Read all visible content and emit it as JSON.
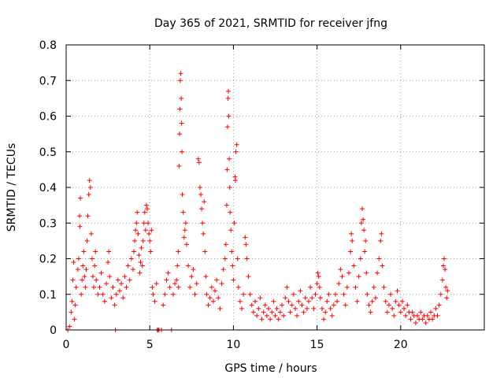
{
  "chart_data": {
    "type": "scatter",
    "title": "Day 365 of 2021, SRMTID for receiver jfng",
    "xlabel": "GPS time / hours",
    "ylabel": "SRMTID / TECUs",
    "xlim": [
      0,
      25
    ],
    "ylim": [
      0,
      0.8
    ],
    "x_ticks": [
      0,
      5,
      10,
      15,
      20
    ],
    "x_tick_labels": [
      "0",
      "5",
      "10",
      "15",
      "20"
    ],
    "y_ticks": [
      0,
      0.1,
      0.2,
      0.3,
      0.4,
      0.5,
      0.6,
      0.7,
      0.8
    ],
    "y_tick_labels": [
      "0",
      "0.1",
      "0.2",
      "0.3",
      "0.4",
      "0.5",
      "0.6",
      "0.7",
      "0.8"
    ],
    "grid": true,
    "marker": "plus",
    "series": [
      {
        "name": "SRMTID",
        "color": "#ff0000",
        "points": [
          [
            0.1,
            0.0
          ],
          [
            0.2,
            0.01
          ],
          [
            0.3,
            0.05
          ],
          [
            0.35,
            0.08
          ],
          [
            0.4,
            0.14
          ],
          [
            0.45,
            0.19
          ],
          [
            0.5,
            0.03
          ],
          [
            0.55,
            0.07
          ],
          [
            0.6,
            0.12
          ],
          [
            0.7,
            0.17
          ],
          [
            0.75,
            0.2
          ],
          [
            0.8,
            0.32
          ],
          [
            0.82,
            0.29
          ],
          [
            0.85,
            0.37
          ],
          [
            0.9,
            0.1
          ],
          [
            0.95,
            0.14
          ],
          [
            1.0,
            0.18
          ],
          [
            1.05,
            0.22
          ],
          [
            1.1,
            0.15
          ],
          [
            1.15,
            0.12
          ],
          [
            1.2,
            0.17
          ],
          [
            1.25,
            0.25
          ],
          [
            1.3,
            0.32
          ],
          [
            1.35,
            0.38
          ],
          [
            1.4,
            0.42
          ],
          [
            1.45,
            0.4
          ],
          [
            1.5,
            0.27
          ],
          [
            1.55,
            0.2
          ],
          [
            1.6,
            0.15
          ],
          [
            1.65,
            0.12
          ],
          [
            1.7,
            0.18
          ],
          [
            1.75,
            0.22
          ],
          [
            1.8,
            0.14
          ],
          [
            1.9,
            0.1
          ],
          [
            2.0,
            0.12
          ],
          [
            2.1,
            0.16
          ],
          [
            2.2,
            0.1
          ],
          [
            2.3,
            0.08
          ],
          [
            2.4,
            0.13
          ],
          [
            2.5,
            0.19
          ],
          [
            2.55,
            0.22
          ],
          [
            2.6,
            0.15
          ],
          [
            2.7,
            0.09
          ],
          [
            2.8,
            0.12
          ],
          [
            2.9,
            0.07
          ],
          [
            2.95,
            0.0
          ],
          [
            3.0,
            0.1
          ],
          [
            3.1,
            0.14
          ],
          [
            3.2,
            0.11
          ],
          [
            3.3,
            0.13
          ],
          [
            3.4,
            0.09
          ],
          [
            3.5,
            0.15
          ],
          [
            3.6,
            0.12
          ],
          [
            3.7,
            0.18
          ],
          [
            3.8,
            0.14
          ],
          [
            3.9,
            0.2
          ],
          [
            4.0,
            0.17
          ],
          [
            4.05,
            0.22
          ],
          [
            4.1,
            0.25
          ],
          [
            4.15,
            0.28
          ],
          [
            4.2,
            0.3
          ],
          [
            4.25,
            0.33
          ],
          [
            4.3,
            0.27
          ],
          [
            4.35,
            0.21
          ],
          [
            4.4,
            0.16
          ],
          [
            4.45,
            0.19
          ],
          [
            4.5,
            0.23
          ],
          [
            4.55,
            0.18
          ],
          [
            4.6,
            0.25
          ],
          [
            4.65,
            0.3
          ],
          [
            4.7,
            0.33
          ],
          [
            4.75,
            0.28
          ],
          [
            4.8,
            0.35
          ],
          [
            4.85,
            0.34
          ],
          [
            4.9,
            0.3
          ],
          [
            4.95,
            0.27
          ],
          [
            5.0,
            0.25
          ],
          [
            5.05,
            0.22
          ],
          [
            5.1,
            0.28
          ],
          [
            5.15,
            0.12
          ],
          [
            5.2,
            0.1
          ],
          [
            5.3,
            0.08
          ],
          [
            5.4,
            0.13
          ],
          [
            5.45,
            0.0
          ],
          [
            5.5,
            0.0
          ],
          [
            5.55,
            0.0
          ],
          [
            5.7,
            0.0
          ],
          [
            5.8,
            0.07
          ],
          [
            5.9,
            0.1
          ],
          [
            6.0,
            0.14
          ],
          [
            6.1,
            0.16
          ],
          [
            6.2,
            0.12
          ],
          [
            6.3,
            0.0
          ],
          [
            6.4,
            0.1
          ],
          [
            6.5,
            0.13
          ],
          [
            6.6,
            0.14
          ],
          [
            6.65,
            0.18
          ],
          [
            6.7,
            0.22
          ],
          [
            6.72,
            0.12
          ],
          [
            6.75,
            0.46
          ],
          [
            6.78,
            0.55
          ],
          [
            6.8,
            0.62
          ],
          [
            6.82,
            0.7
          ],
          [
            6.85,
            0.72
          ],
          [
            6.88,
            0.65
          ],
          [
            6.9,
            0.58
          ],
          [
            6.92,
            0.5
          ],
          [
            6.95,
            0.38
          ],
          [
            7.0,
            0.33
          ],
          [
            7.05,
            0.26
          ],
          [
            7.1,
            0.28
          ],
          [
            7.15,
            0.3
          ],
          [
            7.2,
            0.24
          ],
          [
            7.3,
            0.18
          ],
          [
            7.4,
            0.12
          ],
          [
            7.5,
            0.15
          ],
          [
            7.6,
            0.17
          ],
          [
            7.7,
            0.1
          ],
          [
            7.8,
            0.13
          ],
          [
            7.9,
            0.48
          ],
          [
            7.95,
            0.47
          ],
          [
            8.0,
            0.4
          ],
          [
            8.05,
            0.38
          ],
          [
            8.1,
            0.34
          ],
          [
            8.15,
            0.3
          ],
          [
            8.2,
            0.27
          ],
          [
            8.25,
            0.36
          ],
          [
            8.3,
            0.22
          ],
          [
            8.35,
            0.15
          ],
          [
            8.4,
            0.1
          ],
          [
            8.5,
            0.07
          ],
          [
            8.6,
            0.09
          ],
          [
            8.7,
            0.12
          ],
          [
            8.8,
            0.08
          ],
          [
            8.9,
            0.11
          ],
          [
            9.0,
            0.14
          ],
          [
            9.1,
            0.09
          ],
          [
            9.2,
            0.06
          ],
          [
            9.3,
            0.13
          ],
          [
            9.4,
            0.17
          ],
          [
            9.5,
            0.2
          ],
          [
            9.55,
            0.24
          ],
          [
            9.6,
            0.35
          ],
          [
            9.62,
            0.45
          ],
          [
            9.65,
            0.57
          ],
          [
            9.68,
            0.65
          ],
          [
            9.7,
            0.67
          ],
          [
            9.72,
            0.6
          ],
          [
            9.75,
            0.48
          ],
          [
            9.78,
            0.4
          ],
          [
            9.8,
            0.33
          ],
          [
            9.85,
            0.28
          ],
          [
            9.9,
            0.22
          ],
          [
            9.95,
            0.18
          ],
          [
            10.0,
            0.14
          ],
          [
            10.05,
            0.3
          ],
          [
            10.1,
            0.43
          ],
          [
            10.12,
            0.42
          ],
          [
            10.15,
            0.5
          ],
          [
            10.2,
            0.52
          ],
          [
            10.25,
            0.2
          ],
          [
            10.3,
            0.12
          ],
          [
            10.4,
            0.08
          ],
          [
            10.5,
            0.06
          ],
          [
            10.6,
            0.1
          ],
          [
            10.7,
            0.26
          ],
          [
            10.75,
            0.24
          ],
          [
            10.8,
            0.2
          ],
          [
            10.9,
            0.15
          ],
          [
            11.0,
            0.1
          ],
          [
            11.1,
            0.07
          ],
          [
            11.2,
            0.05
          ],
          [
            11.3,
            0.08
          ],
          [
            11.4,
            0.04
          ],
          [
            11.5,
            0.06
          ],
          [
            11.6,
            0.09
          ],
          [
            11.7,
            0.03
          ],
          [
            11.8,
            0.05
          ],
          [
            11.9,
            0.07
          ],
          [
            12.0,
            0.04
          ],
          [
            12.1,
            0.06
          ],
          [
            12.2,
            0.03
          ],
          [
            12.3,
            0.05
          ],
          [
            12.4,
            0.08
          ],
          [
            12.5,
            0.04
          ],
          [
            12.6,
            0.06
          ],
          [
            12.7,
            0.03
          ],
          [
            12.8,
            0.05
          ],
          [
            12.9,
            0.07
          ],
          [
            13.0,
            0.04
          ],
          [
            13.1,
            0.09
          ],
          [
            13.2,
            0.12
          ],
          [
            13.3,
            0.08
          ],
          [
            13.4,
            0.05
          ],
          [
            13.5,
            0.07
          ],
          [
            13.6,
            0.1
          ],
          [
            13.7,
            0.06
          ],
          [
            13.8,
            0.04
          ],
          [
            13.9,
            0.08
          ],
          [
            14.0,
            0.11
          ],
          [
            14.1,
            0.07
          ],
          [
            14.2,
            0.05
          ],
          [
            14.3,
            0.09
          ],
          [
            14.4,
            0.06
          ],
          [
            14.5,
            0.08
          ],
          [
            14.6,
            0.12
          ],
          [
            14.7,
            0.09
          ],
          [
            14.8,
            0.06
          ],
          [
            14.9,
            0.1
          ],
          [
            15.0,
            0.13
          ],
          [
            15.05,
            0.16
          ],
          [
            15.1,
            0.15
          ],
          [
            15.15,
            0.12
          ],
          [
            15.2,
            0.09
          ],
          [
            15.3,
            0.06
          ],
          [
            15.4,
            0.03
          ],
          [
            15.5,
            0.05
          ],
          [
            15.6,
            0.08
          ],
          [
            15.7,
            0.1
          ],
          [
            15.8,
            0.06
          ],
          [
            15.9,
            0.04
          ],
          [
            16.0,
            0.07
          ],
          [
            16.1,
            0.1
          ],
          [
            16.2,
            0.08
          ],
          [
            16.3,
            0.13
          ],
          [
            16.4,
            0.17
          ],
          [
            16.5,
            0.15
          ],
          [
            16.6,
            0.1
          ],
          [
            16.7,
            0.07
          ],
          [
            16.8,
            0.12
          ],
          [
            16.9,
            0.16
          ],
          [
            17.0,
            0.22
          ],
          [
            17.05,
            0.27
          ],
          [
            17.1,
            0.25
          ],
          [
            17.2,
            0.18
          ],
          [
            17.3,
            0.12
          ],
          [
            17.4,
            0.08
          ],
          [
            17.5,
            0.15
          ],
          [
            17.6,
            0.2
          ],
          [
            17.65,
            0.3
          ],
          [
            17.7,
            0.34
          ],
          [
            17.75,
            0.31
          ],
          [
            17.8,
            0.28
          ],
          [
            17.85,
            0.22
          ],
          [
            17.9,
            0.25
          ],
          [
            17.95,
            0.16
          ],
          [
            18.0,
            0.1
          ],
          [
            18.1,
            0.07
          ],
          [
            18.2,
            0.05
          ],
          [
            18.3,
            0.08
          ],
          [
            18.4,
            0.12
          ],
          [
            18.5,
            0.09
          ],
          [
            18.6,
            0.16
          ],
          [
            18.7,
            0.2
          ],
          [
            18.8,
            0.25
          ],
          [
            18.85,
            0.27
          ],
          [
            18.9,
            0.18
          ],
          [
            19.0,
            0.12
          ],
          [
            19.1,
            0.08
          ],
          [
            19.2,
            0.05
          ],
          [
            19.3,
            0.07
          ],
          [
            19.4,
            0.1
          ],
          [
            19.5,
            0.06
          ],
          [
            19.6,
            0.04
          ],
          [
            19.7,
            0.08
          ],
          [
            19.8,
            0.11
          ],
          [
            19.9,
            0.07
          ],
          [
            20.0,
            0.05
          ],
          [
            20.1,
            0.08
          ],
          [
            20.2,
            0.06
          ],
          [
            20.3,
            0.04
          ],
          [
            20.4,
            0.07
          ],
          [
            20.5,
            0.05
          ],
          [
            20.6,
            0.03
          ],
          [
            20.7,
            0.05
          ],
          [
            20.8,
            0.04
          ],
          [
            20.9,
            0.02
          ],
          [
            21.0,
            0.04
          ],
          [
            21.1,
            0.03
          ],
          [
            21.2,
            0.05
          ],
          [
            21.3,
            0.03
          ],
          [
            21.4,
            0.04
          ],
          [
            21.5,
            0.02
          ],
          [
            21.6,
            0.04
          ],
          [
            21.7,
            0.03
          ],
          [
            21.8,
            0.05
          ],
          [
            21.9,
            0.03
          ],
          [
            22.0,
            0.04
          ],
          [
            22.1,
            0.06
          ],
          [
            22.2,
            0.04
          ],
          [
            22.3,
            0.07
          ],
          [
            22.4,
            0.1
          ],
          [
            22.5,
            0.14
          ],
          [
            22.55,
            0.18
          ],
          [
            22.6,
            0.2
          ],
          [
            22.65,
            0.17
          ],
          [
            22.7,
            0.12
          ],
          [
            22.75,
            0.09
          ],
          [
            22.8,
            0.11
          ]
        ]
      }
    ]
  }
}
